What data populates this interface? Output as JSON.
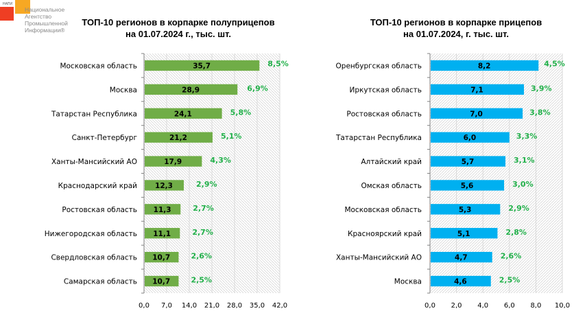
{
  "logo": {
    "tag": "НАПИ",
    "name_lines": "Национальное\nАгентство\nПромышленной\nИнформации®",
    "colors": {
      "red": "#ef3e23",
      "orange": "#f7a823"
    }
  },
  "chart_data": [
    {
      "type": "bar",
      "orientation": "horizontal",
      "title": "ТОП-10 регионов в корпарке полуприцепов на 01.07.2024 г., тыс. шт.",
      "title_lines": [
        "ТОП-10 регионов в корпарке полуприцепов",
        "на 01.07.2024 г., тыс. шт."
      ],
      "categories": [
        "Московская область",
        "Москва",
        "Татарстан Республика",
        "Санкт-Петербург",
        "Ханты-Мансийский АО",
        "Краснодарский край",
        "Ростовская область",
        "Нижегородская область",
        "Свердловская область",
        "Самарская область"
      ],
      "values": [
        35.7,
        28.9,
        24.1,
        21.2,
        17.9,
        12.3,
        11.3,
        11.1,
        10.7,
        10.7
      ],
      "value_labels": [
        "35,7",
        "28,9",
        "24,1",
        "21,2",
        "17,9",
        "12,3",
        "11,3",
        "11,1",
        "10,7",
        "10,7"
      ],
      "share_labels": [
        "8,5%",
        "6,9%",
        "5,8%",
        "5,1%",
        "4,3%",
        "2,9%",
        "2,7%",
        "2,7%",
        "2,6%",
        "2,5%"
      ],
      "xlim": [
        0,
        42
      ],
      "xticks": [
        0,
        7,
        14,
        21,
        28,
        35,
        42
      ],
      "xtick_labels": [
        "0,0",
        "7,0",
        "14,0",
        "21,0",
        "28,0",
        "35,0",
        "42,0"
      ],
      "xlabel": "",
      "ylabel": "",
      "grid": true,
      "bar_color": "#70ad47",
      "share_color": "#22b04a",
      "hatch": "backslash"
    },
    {
      "type": "bar",
      "orientation": "horizontal",
      "title": "ТОП-10 регионов в корпарке прицепов на 01.07.2024, г. тыс. шт.",
      "title_lines": [
        "ТОП-10 регионов в корпарке прицепов",
        "на 01.07.2024, г. тыс. шт."
      ],
      "categories": [
        "Оренбургская область",
        "Иркутская область",
        "Ростовская область",
        "Татарстан Республика",
        "Алтайский край",
        "Омская область",
        "Московская область",
        "Красноярский край",
        "Ханты-Мансийский АО",
        "Москва"
      ],
      "values": [
        8.2,
        7.1,
        7.0,
        6.0,
        5.7,
        5.6,
        5.3,
        5.1,
        4.7,
        4.6
      ],
      "value_labels": [
        "8,2",
        "7,1",
        "7,0",
        "6,0",
        "5,7",
        "5,6",
        "5,3",
        "5,1",
        "4,7",
        "4,6"
      ],
      "share_labels": [
        "4,5%",
        "3,9%",
        "3,8%",
        "3,3%",
        "3,1%",
        "3,0%",
        "2,9%",
        "2,8%",
        "2,6%",
        "2,5%"
      ],
      "xlim": [
        0,
        10
      ],
      "xticks": [
        0,
        2,
        4,
        6,
        8,
        10
      ],
      "xtick_labels": [
        "0,0",
        "2,0",
        "4,0",
        "6,0",
        "8,0",
        "10,0"
      ],
      "xlabel": "",
      "ylabel": "",
      "grid": true,
      "bar_color": "#00b0f0",
      "share_color": "#22b04a",
      "hatch": "slash"
    }
  ]
}
